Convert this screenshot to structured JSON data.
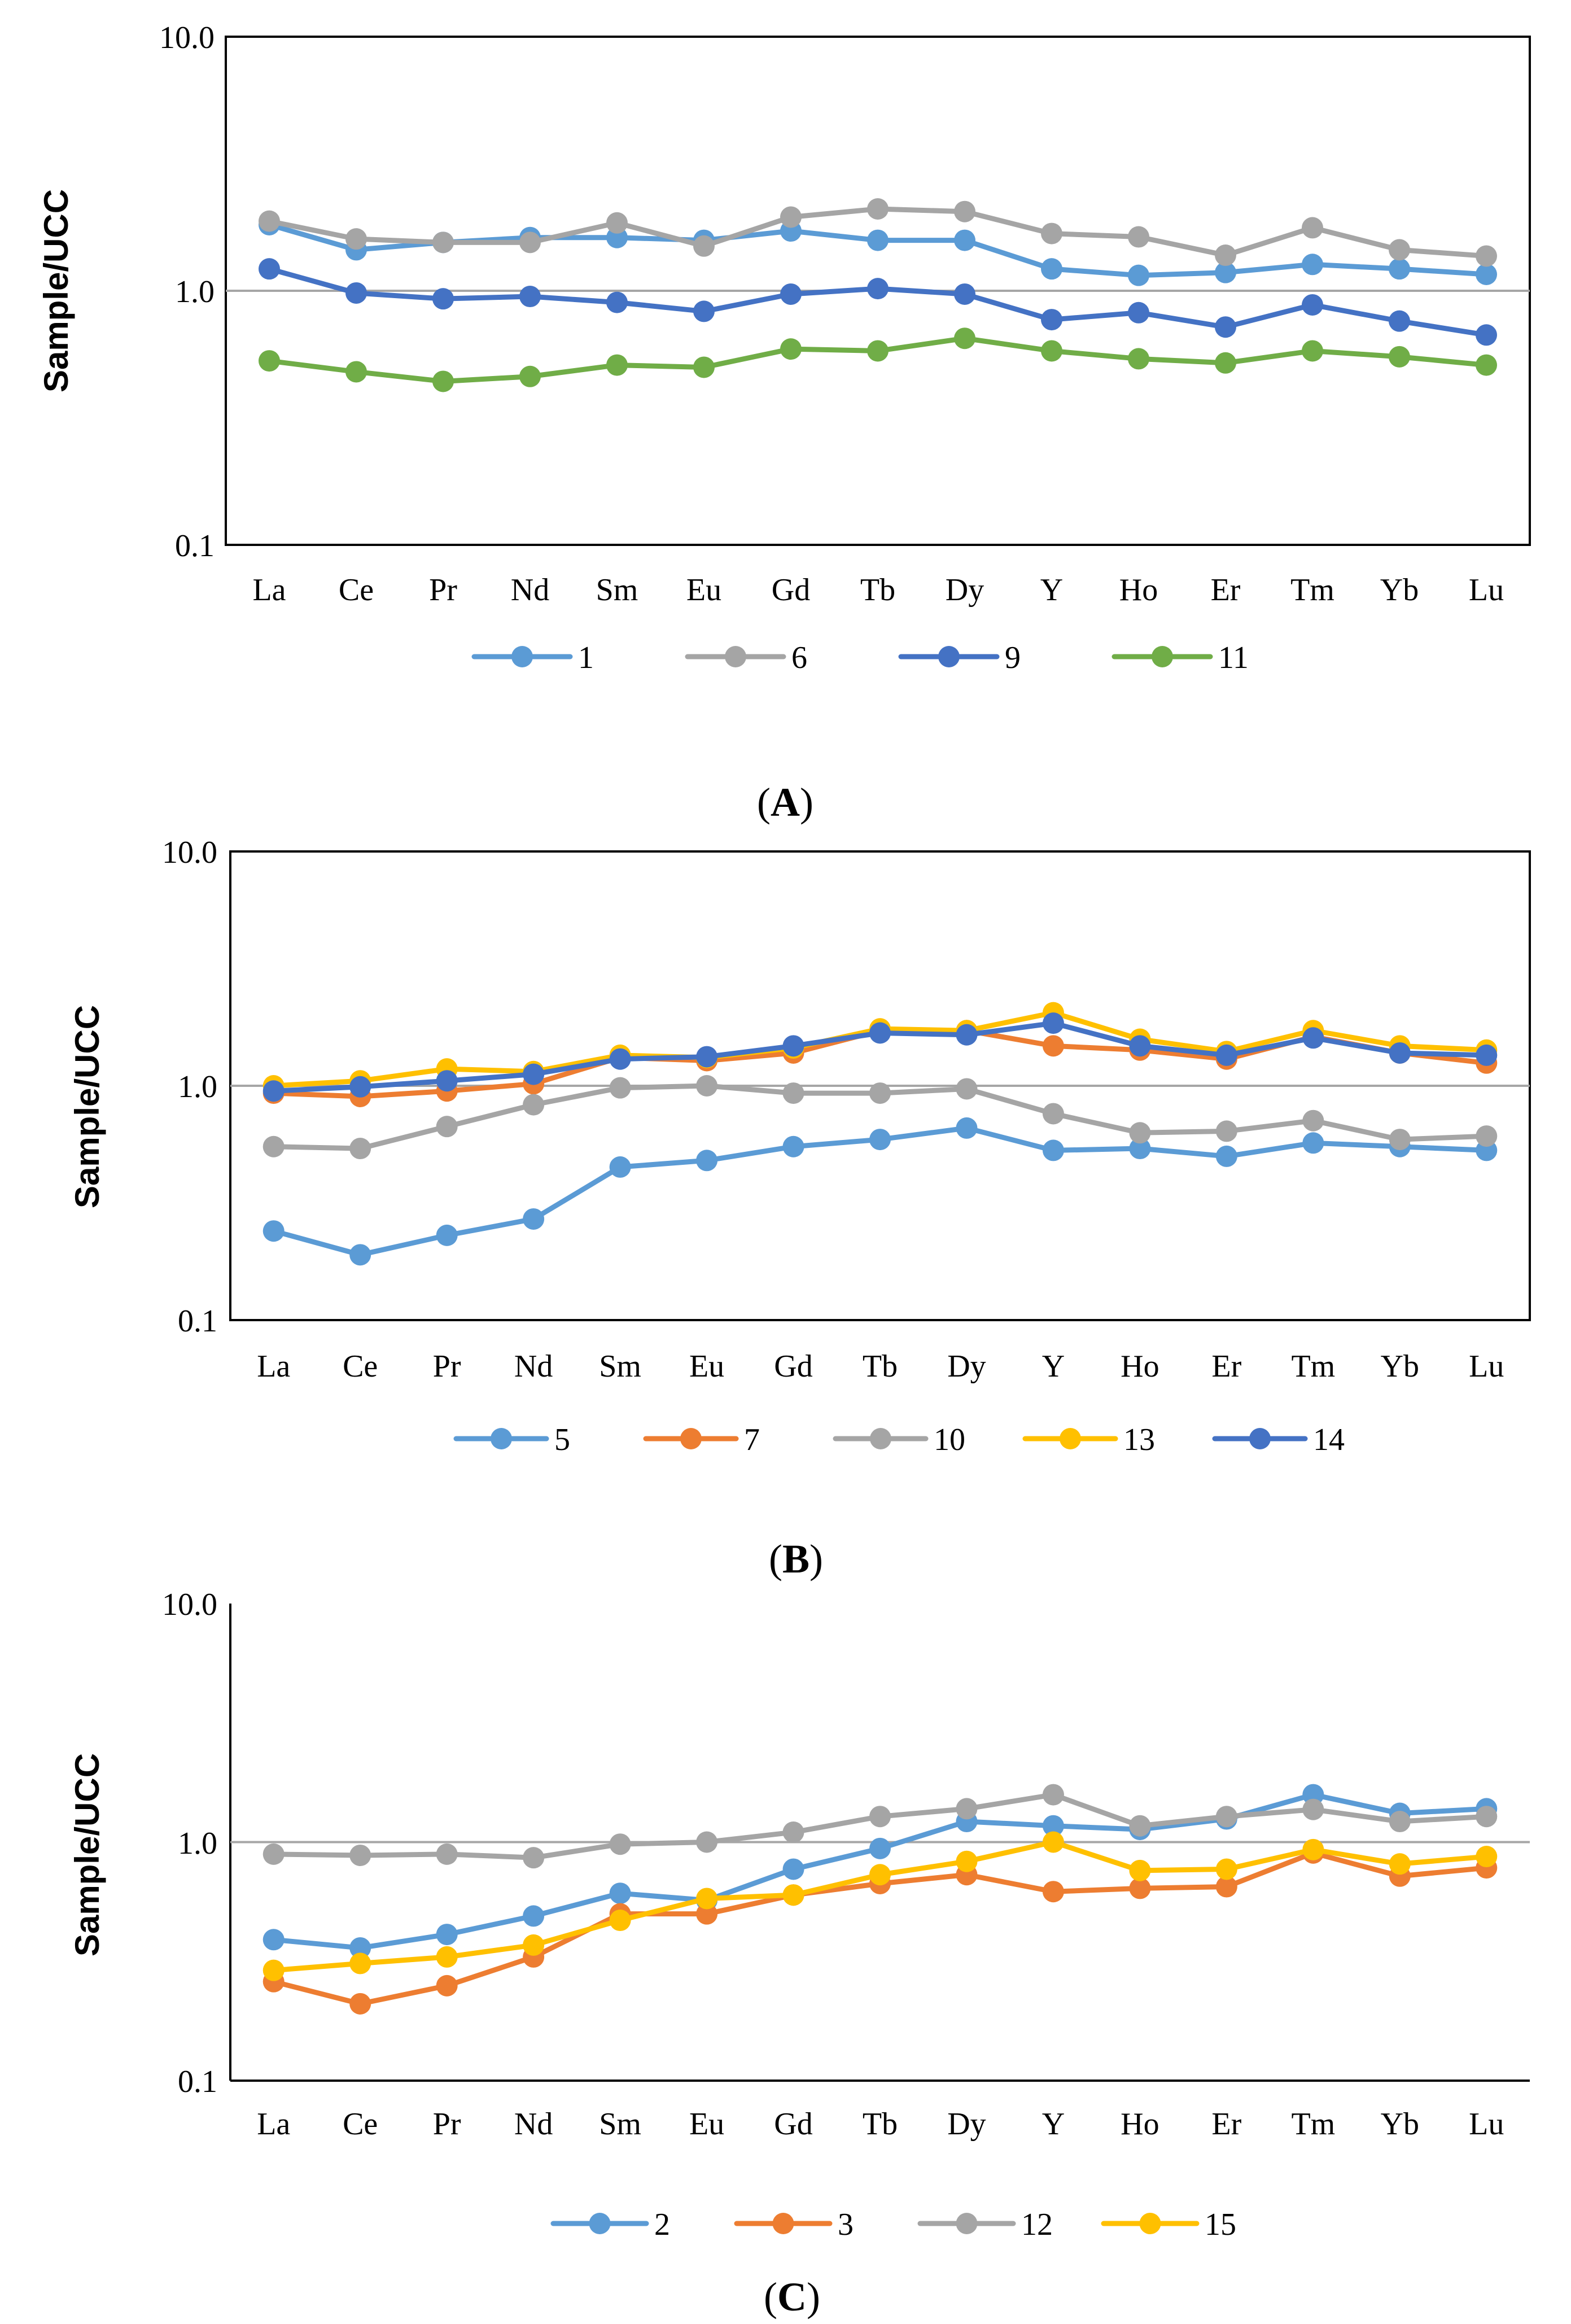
{
  "chart_data": [
    {
      "type": "line",
      "y_scale": "log",
      "ylabel": "Sample/UCC",
      "ylim": [
        0.1,
        10.0
      ],
      "y_ticks": [
        "10.0",
        "1.0",
        "0.1"
      ],
      "reference_line": 1.0,
      "panel_label": "(A)",
      "panel_letter": "A",
      "categories": [
        "La",
        "Ce",
        "Pr",
        "Nd",
        "Sm",
        "Eu",
        "Gd",
        "Tb",
        "Dy",
        "Y",
        "Ho",
        "Er",
        "Tm",
        "Yb",
        "Lu"
      ],
      "series": [
        {
          "name": "1",
          "color": "#5B9BD5",
          "values": [
            1.82,
            1.45,
            1.55,
            1.62,
            1.62,
            1.58,
            1.72,
            1.58,
            1.58,
            1.22,
            1.15,
            1.18,
            1.27,
            1.22,
            1.16
          ]
        },
        {
          "name": "6",
          "color": "#A5A5A5",
          "values": [
            1.88,
            1.6,
            1.55,
            1.55,
            1.85,
            1.5,
            1.95,
            2.1,
            2.05,
            1.68,
            1.63,
            1.38,
            1.77,
            1.45,
            1.37
          ]
        },
        {
          "name": "9",
          "color": "#4472C4",
          "values": [
            1.22,
            0.98,
            0.93,
            0.95,
            0.9,
            0.83,
            0.97,
            1.02,
            0.97,
            0.77,
            0.82,
            0.72,
            0.88,
            0.76,
            0.67
          ]
        },
        {
          "name": "11",
          "color": "#70AD47",
          "values": [
            0.53,
            0.48,
            0.44,
            0.46,
            0.51,
            0.5,
            0.59,
            0.58,
            0.65,
            0.58,
            0.54,
            0.52,
            0.58,
            0.55,
            0.51
          ]
        }
      ]
    },
    {
      "type": "line",
      "y_scale": "log",
      "ylabel": "Sample/UCC",
      "ylim": [
        0.1,
        10.0
      ],
      "y_ticks": [
        "10.0",
        "1.0",
        "0.1"
      ],
      "reference_line": 1.0,
      "panel_label": "(B)",
      "panel_letter": "B",
      "categories": [
        "La",
        "Ce",
        "Pr",
        "Nd",
        "Sm",
        "Eu",
        "Gd",
        "Tb",
        "Dy",
        "Y",
        "Ho",
        "Er",
        "Tm",
        "Yb",
        "Lu"
      ],
      "series": [
        {
          "name": "5",
          "color": "#5B9BD5",
          "values": [
            0.24,
            0.19,
            0.23,
            0.27,
            0.45,
            0.48,
            0.55,
            0.59,
            0.66,
            0.53,
            0.54,
            0.5,
            0.57,
            0.55,
            0.53
          ]
        },
        {
          "name": "7",
          "color": "#ED7D31",
          "values": [
            0.93,
            0.9,
            0.95,
            1.02,
            1.32,
            1.28,
            1.38,
            1.72,
            1.72,
            1.48,
            1.42,
            1.3,
            1.62,
            1.38,
            1.25
          ]
        },
        {
          "name": "10",
          "color": "#A5A5A5",
          "values": [
            0.55,
            0.54,
            0.67,
            0.83,
            0.98,
            1.0,
            0.93,
            0.93,
            0.97,
            0.76,
            0.63,
            0.64,
            0.71,
            0.59,
            0.61
          ]
        },
        {
          "name": "13",
          "color": "#FFC000",
          "values": [
            1.0,
            1.05,
            1.18,
            1.15,
            1.35,
            1.32,
            1.45,
            1.75,
            1.72,
            2.05,
            1.58,
            1.4,
            1.72,
            1.48,
            1.42
          ]
        },
        {
          "name": "14",
          "color": "#4472C4",
          "values": [
            0.95,
            0.99,
            1.05,
            1.12,
            1.3,
            1.33,
            1.48,
            1.68,
            1.65,
            1.85,
            1.48,
            1.35,
            1.6,
            1.38,
            1.35
          ]
        }
      ]
    },
    {
      "type": "line",
      "y_scale": "log",
      "ylabel": "Sample/UCC",
      "ylim": [
        0.1,
        10.0
      ],
      "y_ticks": [
        "10.0",
        "1.0",
        "0.1"
      ],
      "reference_line": 1.0,
      "panel_label": "(C)",
      "panel_letter": "C",
      "categories": [
        "La",
        "Ce",
        "Pr",
        "Nd",
        "Sm",
        "Eu",
        "Gd",
        "Tb",
        "Dy",
        "Y",
        "Ho",
        "Er",
        "Tm",
        "Yb",
        "Lu"
      ],
      "series": [
        {
          "name": "2",
          "color": "#5B9BD5",
          "values": [
            0.39,
            0.36,
            0.41,
            0.49,
            0.61,
            0.57,
            0.77,
            0.94,
            1.22,
            1.17,
            1.13,
            1.25,
            1.58,
            1.32,
            1.38
          ]
        },
        {
          "name": "3",
          "color": "#ED7D31",
          "values": [
            0.26,
            0.21,
            0.25,
            0.33,
            0.5,
            0.5,
            0.6,
            0.67,
            0.73,
            0.62,
            0.64,
            0.65,
            0.9,
            0.72,
            0.78
          ]
        },
        {
          "name": "12",
          "color": "#A5A5A5",
          "values": [
            0.89,
            0.88,
            0.89,
            0.86,
            0.98,
            1.0,
            1.1,
            1.28,
            1.38,
            1.58,
            1.17,
            1.28,
            1.37,
            1.22,
            1.28
          ]
        },
        {
          "name": "15",
          "color": "#FFC000",
          "values": [
            0.29,
            0.31,
            0.33,
            0.37,
            0.47,
            0.58,
            0.6,
            0.73,
            0.83,
            1.0,
            0.76,
            0.77,
            0.93,
            0.81,
            0.87
          ]
        }
      ]
    }
  ]
}
